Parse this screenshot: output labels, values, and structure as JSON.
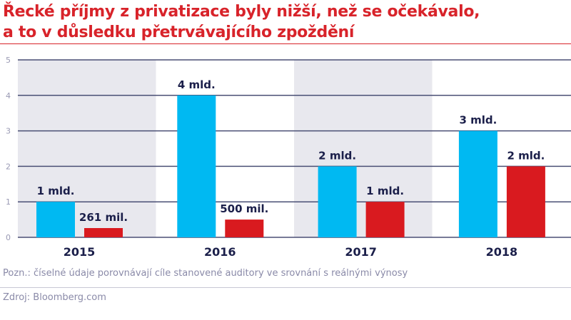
{
  "title_line1": "Řecké příjmy z privatizace byly nižší, než se očekávalo,",
  "title_line2": "a to v důsledku přetrvávajícího zpoždění",
  "note": "Pozn.: číselné údaje porovnávají cíle stanovené auditory ve srovnání s reálnými výnosy",
  "source": "Zdroj: Bloomberg.com",
  "chart_data": {
    "type": "bar",
    "categories": [
      "2015",
      "2016",
      "2017",
      "2018"
    ],
    "ylim": [
      0,
      5
    ],
    "yticks": [
      "0",
      "1",
      "2",
      "3",
      "4",
      "5"
    ],
    "grid": true,
    "series": [
      {
        "values": [
          1,
          4,
          2,
          3
        ],
        "labels": [
          "1 mld.",
          "4 mld.",
          "2 mld.",
          "3 mld."
        ],
        "color": "#00b9f2"
      },
      {
        "values": [
          0.261,
          0.5,
          1,
          2
        ],
        "labels": [
          "261 mil.",
          "500 mil.",
          "1 mld.",
          "2 mld."
        ],
        "color": "#d91a1f"
      }
    ],
    "band_color": "#e8e8ee",
    "grid_color": "#4a4f75",
    "label_color": "#1b1f4a"
  }
}
